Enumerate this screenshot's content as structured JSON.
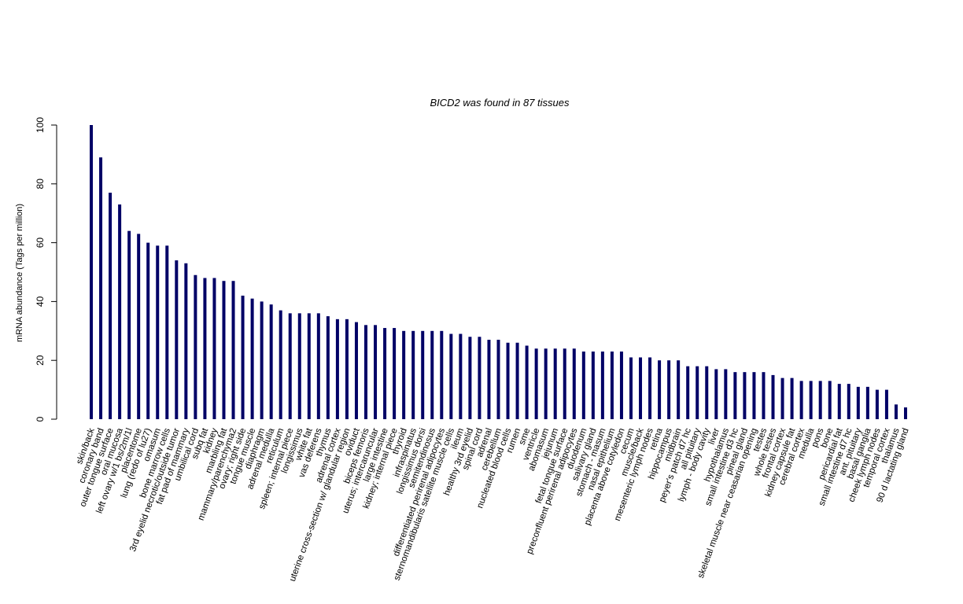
{
  "chart_data": {
    "type": "bar",
    "title": "BICD2  was found in  87  tissues",
    "xlabel": "",
    "ylabel": "mRNA abundance (Tags per million)",
    "ylim": [
      0,
      100
    ],
    "yticks": [
      0,
      20,
      40,
      60,
      80,
      100
    ],
    "grid": false,
    "bar_color": "#000066",
    "categories": [
      "skin/back",
      "coronary band",
      "outer tongue surface",
      "oral mucosa",
      "left ovary w/1 bs/2m/1l",
      "placentome",
      "lung (redo of lu27)",
      "omasum",
      "bone marrow cells",
      "3rd eyelid necrotic/outside tumor",
      "fat pad of mammary",
      "umbilical cord",
      "subq fat",
      "kidney",
      "marbling fat",
      "mammary/parenchyma2",
      "ovary; right side",
      "tongue muscle",
      "diaphragm",
      "adrenal medulla",
      "reticulum",
      "spleen; internal piece",
      "longissimus",
      "white fat",
      "vas deferens",
      "thymus",
      "adrenal cortex",
      "uterine cross-section w/ glandular region",
      "oviduct",
      "biceps femoris",
      "uterus; intercaruncular",
      "large intestine",
      "kidney; internal piece",
      "thyroid",
      "infraspinatus",
      "longissimus dorsi",
      "semitendinosus",
      "differentiated perirenal adipocytes",
      "sternomandibularis satellite muscle cells",
      "ileum",
      "healthy 3rd eyelid",
      "spinal cord",
      "adrenal",
      "cerebellum",
      "nucleated blood cells",
      "rumen",
      "sme",
      "ventricle",
      "abomasum",
      "jejunum",
      "fetal tongue surface",
      "preconfluent perirenal adipocytes",
      "duodenum",
      "salivary gland",
      "stomach - masum",
      "nasal epithelium",
      "placenta above cotyledon",
      "cecum",
      "muscle/back",
      "mesenteric lymph nodes",
      "retina",
      "hippocampus",
      "midbrain",
      "peyer's patch d7 hc",
      "all pituitary",
      "lymph - body cavity",
      "liver",
      "hypothalamus",
      "small intestine d3 hc",
      "pineal gland",
      "skeletal muscle near ceasarian opening",
      "testes",
      "whole testes",
      "frontal cortex",
      "kidney capsule fat",
      "cerebral cortex",
      "medulla",
      "pons",
      "bone",
      "pericardial fat",
      "small intestine d7 hc",
      "ant. pituitary",
      "basal ganglia",
      "cheek lymph nodes",
      "temporal cortex",
      "thalamus",
      "90 d lactating gland"
    ],
    "values": [
      100,
      89,
      77,
      73,
      64,
      63,
      60,
      59,
      59,
      54,
      53,
      49,
      48,
      48,
      47,
      47,
      42,
      41,
      40,
      39,
      37,
      36,
      36,
      36,
      36,
      35,
      34,
      34,
      33,
      32,
      32,
      31,
      31,
      30,
      30,
      30,
      30,
      30,
      29,
      29,
      28,
      28,
      27,
      27,
      26,
      26,
      25,
      24,
      24,
      24,
      24,
      24,
      23,
      23,
      23,
      23,
      23,
      21,
      21,
      21,
      20,
      20,
      20,
      18,
      18,
      18,
      17,
      17,
      16,
      16,
      16,
      16,
      15,
      14,
      14,
      13,
      13,
      13,
      13,
      12,
      12,
      11,
      11,
      10,
      10,
      5,
      4
    ]
  }
}
